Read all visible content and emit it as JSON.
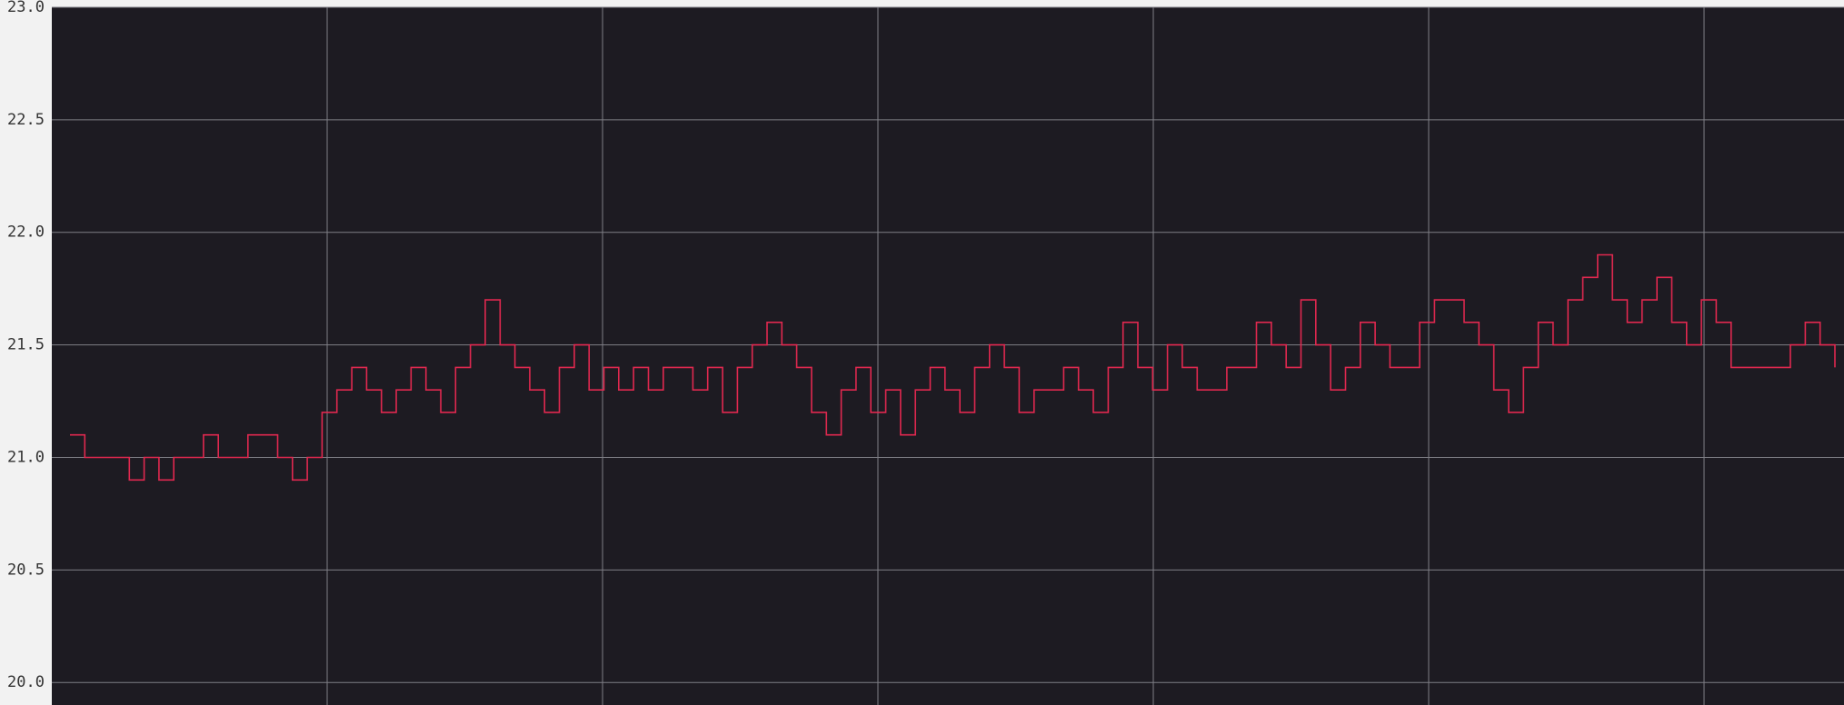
{
  "chart_data": {
    "type": "line",
    "title": "",
    "xlabel": "",
    "ylabel": "",
    "ylim": [
      19.9,
      23.0
    ],
    "yticks": [
      20.0,
      20.5,
      21.0,
      21.5,
      22.0,
      22.5,
      23.0
    ],
    "ytick_labels": [
      "20.0",
      "20.5",
      "21.0",
      "21.5",
      "22.0",
      "22.5",
      "23.0"
    ],
    "grid": true,
    "x_vertical_gridlines": 6,
    "step": true,
    "series": [
      {
        "values": [
          21.1,
          21.0,
          21.0,
          21.0,
          20.9,
          21.0,
          20.9,
          21.0,
          21.0,
          21.1,
          21.0,
          21.0,
          21.1,
          21.1,
          21.0,
          20.9,
          21.0,
          21.2,
          21.3,
          21.4,
          21.3,
          21.2,
          21.3,
          21.4,
          21.3,
          21.2,
          21.4,
          21.5,
          21.7,
          21.5,
          21.4,
          21.3,
          21.2,
          21.4,
          21.5,
          21.3,
          21.4,
          21.3,
          21.4,
          21.3,
          21.4,
          21.4,
          21.3,
          21.4,
          21.2,
          21.4,
          21.5,
          21.6,
          21.5,
          21.4,
          21.2,
          21.1,
          21.3,
          21.4,
          21.2,
          21.3,
          21.1,
          21.3,
          21.4,
          21.3,
          21.2,
          21.4,
          21.5,
          21.4,
          21.2,
          21.3,
          21.3,
          21.4,
          21.3,
          21.2,
          21.4,
          21.6,
          21.4,
          21.3,
          21.5,
          21.4,
          21.3,
          21.3,
          21.4,
          21.4,
          21.6,
          21.5,
          21.4,
          21.7,
          21.5,
          21.3,
          21.4,
          21.6,
          21.5,
          21.4,
          21.4,
          21.6,
          21.7,
          21.7,
          21.6,
          21.5,
          21.3,
          21.2,
          21.4,
          21.6,
          21.5,
          21.7,
          21.8,
          21.9,
          21.7,
          21.6,
          21.7,
          21.8,
          21.6,
          21.5,
          21.7,
          21.6,
          21.4,
          21.4,
          21.4,
          21.4,
          21.5,
          21.6,
          21.5,
          21.4
        ]
      }
    ]
  },
  "colors": {
    "plot_background": "#1d1b22",
    "grid": "#7f7f86",
    "line": "#e0284f",
    "label": "#333333",
    "page_background": "#f2f2f2"
  }
}
